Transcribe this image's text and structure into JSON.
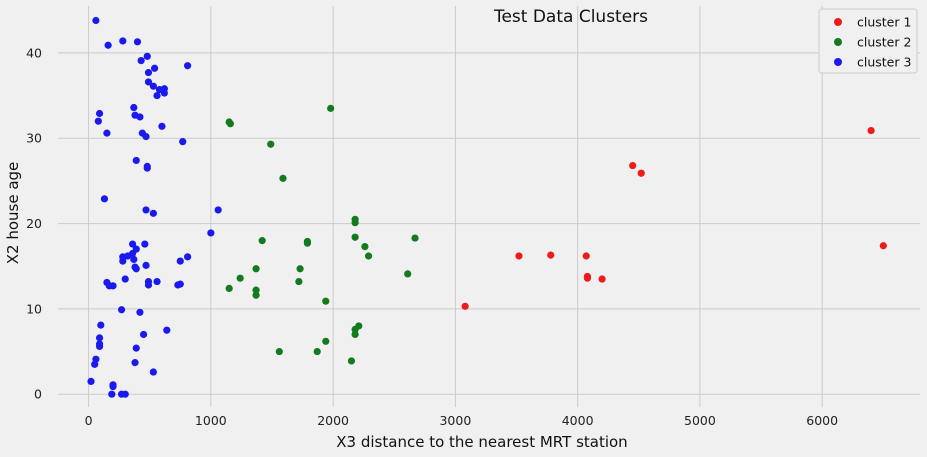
{
  "chart_data": {
    "type": "scatter",
    "title": "Test Data Clusters",
    "xlabel": "X3 distance to the nearest MRT station",
    "ylabel": "X2 house age",
    "xlim": [
      -250,
      6800
    ],
    "ylim": [
      -1.5,
      45.5
    ],
    "xticks": [
      0,
      1000,
      2000,
      3000,
      4000,
      5000,
      6000
    ],
    "yticks": [
      0,
      10,
      20,
      30,
      40
    ],
    "grid": true,
    "legend_position": "top-right",
    "series": [
      {
        "name": "cluster 1",
        "color": "#ef1a1a",
        "points": [
          [
            6400,
            30.9
          ],
          [
            6500,
            17.4
          ],
          [
            4450,
            26.8
          ],
          [
            4520,
            25.9
          ],
          [
            3520,
            16.2
          ],
          [
            3780,
            16.3
          ],
          [
            4070,
            16.2
          ],
          [
            4080,
            13.8
          ],
          [
            4080,
            13.6
          ],
          [
            4200,
            13.5
          ],
          [
            3080,
            10.3
          ]
        ]
      },
      {
        "name": "cluster 2",
        "color": "#137a1d",
        "points": [
          [
            1150,
            31.9
          ],
          [
            1160,
            31.7
          ],
          [
            1980,
            33.5
          ],
          [
            1490,
            29.3
          ],
          [
            1590,
            25.3
          ],
          [
            2180,
            20.5
          ],
          [
            2180,
            20.1
          ],
          [
            2180,
            18.4
          ],
          [
            2260,
            17.3
          ],
          [
            2290,
            16.2
          ],
          [
            2670,
            18.3
          ],
          [
            2610,
            14.1
          ],
          [
            1420,
            18.0
          ],
          [
            1790,
            17.9
          ],
          [
            1790,
            17.7
          ],
          [
            1370,
            14.7
          ],
          [
            1730,
            14.7
          ],
          [
            1720,
            13.2
          ],
          [
            1240,
            13.6
          ],
          [
            1150,
            12.4
          ],
          [
            1370,
            12.2
          ],
          [
            1370,
            11.6
          ],
          [
            1940,
            10.9
          ],
          [
            2180,
            7.6
          ],
          [
            2210,
            8.0
          ],
          [
            2180,
            7.0
          ],
          [
            1940,
            6.2
          ],
          [
            1560,
            5.0
          ],
          [
            1870,
            5.0
          ],
          [
            2150,
            3.9
          ]
        ]
      },
      {
        "name": "cluster 3",
        "color": "#1a1aef",
        "points": [
          [
            60,
            43.8
          ],
          [
            160,
            40.9
          ],
          [
            280,
            41.4
          ],
          [
            400,
            41.3
          ],
          [
            480,
            39.6
          ],
          [
            430,
            39.1
          ],
          [
            540,
            38.2
          ],
          [
            810,
            38.5
          ],
          [
            490,
            37.7
          ],
          [
            490,
            36.6
          ],
          [
            530,
            36.1
          ],
          [
            580,
            35.7
          ],
          [
            620,
            35.8
          ],
          [
            560,
            35.0
          ],
          [
            620,
            35.3
          ],
          [
            370,
            33.6
          ],
          [
            90,
            32.9
          ],
          [
            380,
            32.7
          ],
          [
            420,
            32.5
          ],
          [
            80,
            32.0
          ],
          [
            600,
            31.4
          ],
          [
            150,
            30.6
          ],
          [
            440,
            30.6
          ],
          [
            470,
            30.2
          ],
          [
            770,
            29.6
          ],
          [
            390,
            27.4
          ],
          [
            480,
            26.7
          ],
          [
            480,
            26.5
          ],
          [
            130,
            22.9
          ],
          [
            470,
            21.6
          ],
          [
            530,
            21.2
          ],
          [
            1060,
            21.6
          ],
          [
            1000,
            18.9
          ],
          [
            360,
            17.6
          ],
          [
            460,
            17.6
          ],
          [
            390,
            17.0
          ],
          [
            360,
            16.5
          ],
          [
            320,
            16.2
          ],
          [
            280,
            16.1
          ],
          [
            280,
            15.6
          ],
          [
            370,
            15.8
          ],
          [
            810,
            16.1
          ],
          [
            750,
            15.6
          ],
          [
            470,
            15.1
          ],
          [
            380,
            14.9
          ],
          [
            390,
            14.7
          ],
          [
            300,
            13.5
          ],
          [
            150,
            13.1
          ],
          [
            170,
            12.7
          ],
          [
            200,
            12.7
          ],
          [
            490,
            13.2
          ],
          [
            560,
            13.2
          ],
          [
            490,
            12.8
          ],
          [
            730,
            12.8
          ],
          [
            750,
            12.9
          ],
          [
            270,
            9.9
          ],
          [
            420,
            9.6
          ],
          [
            100,
            8.1
          ],
          [
            90,
            6.6
          ],
          [
            90,
            5.9
          ],
          [
            90,
            5.6
          ],
          [
            640,
            7.5
          ],
          [
            450,
            7.0
          ],
          [
            390,
            5.4
          ],
          [
            60,
            4.1
          ],
          [
            50,
            3.5
          ],
          [
            380,
            3.7
          ],
          [
            530,
            2.6
          ],
          [
            20,
            1.5
          ],
          [
            200,
            1.1
          ],
          [
            200,
            0.9
          ],
          [
            190,
            0.0
          ],
          [
            270,
            0.0
          ],
          [
            300,
            0.0
          ]
        ]
      }
    ]
  }
}
